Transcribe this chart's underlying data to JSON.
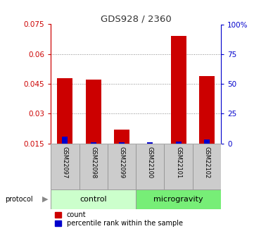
{
  "title": "GDS928 / 2360",
  "samples": [
    "GSM22097",
    "GSM22098",
    "GSM22099",
    "GSM22100",
    "GSM22101",
    "GSM22102"
  ],
  "groups": [
    "control",
    "control",
    "control",
    "microgravity",
    "microgravity",
    "microgravity"
  ],
  "count_values": [
    0.048,
    0.047,
    0.022,
    0.015,
    0.069,
    0.049
  ],
  "percentile_values": [
    0.0185,
    0.0155,
    0.0155,
    0.0155,
    0.016,
    0.017
  ],
  "bar_color_red": "#cc0000",
  "bar_color_blue": "#0000cc",
  "ylim_min": 0.015,
  "ylim_max": 0.075,
  "yticks": [
    0.015,
    0.03,
    0.045,
    0.06,
    0.075
  ],
  "right_yticks": [
    0,
    25,
    50,
    75,
    100
  ],
  "right_ytick_positions": [
    0.015,
    0.03,
    0.045,
    0.06,
    0.075
  ],
  "group_colors_control": "#ccffcc",
  "group_colors_microgravity": "#77ee77",
  "control_label": "control",
  "microgravity_label": "microgravity",
  "protocol_label": "protocol",
  "legend_count": "count",
  "legend_percentile": "percentile rank within the sample",
  "title_color": "#333333",
  "left_axis_color": "#cc0000",
  "right_axis_color": "#0000cc",
  "bar_width": 0.55,
  "blue_bar_width": 0.2,
  "background_color": "#ffffff",
  "sample_box_color": "#cccccc",
  "sample_box_edge": "#999999"
}
